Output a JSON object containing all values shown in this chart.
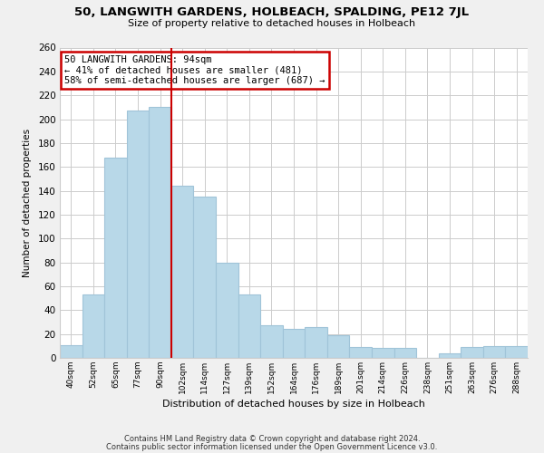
{
  "title": "50, LANGWITH GARDENS, HOLBEACH, SPALDING, PE12 7JL",
  "subtitle": "Size of property relative to detached houses in Holbeach",
  "xlabel": "Distribution of detached houses by size in Holbeach",
  "ylabel": "Number of detached properties",
  "bar_labels": [
    "40sqm",
    "52sqm",
    "65sqm",
    "77sqm",
    "90sqm",
    "102sqm",
    "114sqm",
    "127sqm",
    "139sqm",
    "152sqm",
    "164sqm",
    "176sqm",
    "189sqm",
    "201sqm",
    "214sqm",
    "226sqm",
    "238sqm",
    "251sqm",
    "263sqm",
    "276sqm",
    "288sqm"
  ],
  "bar_values": [
    11,
    53,
    168,
    207,
    210,
    144,
    135,
    80,
    53,
    27,
    24,
    26,
    19,
    9,
    8,
    8,
    0,
    4,
    9,
    10,
    10
  ],
  "bar_color": "#b8d8e8",
  "bar_edge_color": "#a0c4d8",
  "vline_color": "#cc0000",
  "vline_x": 4.5,
  "annotation_title": "50 LANGWITH GARDENS: 94sqm",
  "annotation_line1": "← 41% of detached houses are smaller (481)",
  "annotation_line2": "58% of semi-detached houses are larger (687) →",
  "annotation_box_color": "white",
  "annotation_box_edge": "#cc0000",
  "ylim": [
    0,
    260
  ],
  "yticks": [
    0,
    20,
    40,
    60,
    80,
    100,
    120,
    140,
    160,
    180,
    200,
    220,
    240,
    260
  ],
  "footnote1": "Contains HM Land Registry data © Crown copyright and database right 2024.",
  "footnote2": "Contains public sector information licensed under the Open Government Licence v3.0.",
  "bg_color": "#f0f0f0",
  "plot_bg_color": "#ffffff",
  "grid_color": "#cccccc"
}
